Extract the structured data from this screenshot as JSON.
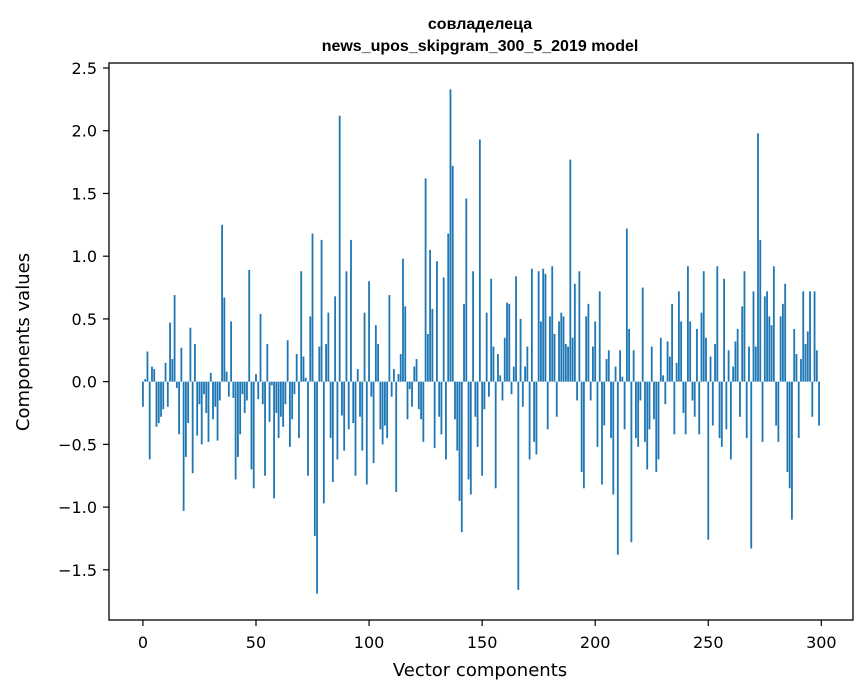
{
  "chart_data": {
    "type": "bar",
    "title": "совладелеца",
    "subtitle": "news_upos_skipgram_300_5_2019 model",
    "xlabel": "Vector components",
    "ylabel": "Components values",
    "xlim": [
      -15,
      314
    ],
    "ylim": [
      -1.9,
      2.54
    ],
    "x_ticks": [
      0,
      50,
      100,
      150,
      200,
      250,
      300
    ],
    "x_tick_labels": [
      "0",
      "50",
      "100",
      "150",
      "200",
      "250",
      "300"
    ],
    "y_ticks": [
      -1.5,
      -1.0,
      -0.5,
      0.0,
      0.5,
      1.0,
      1.5,
      2.0,
      2.5
    ],
    "y_tick_labels": [
      "−1.5",
      "−1.0",
      "−0.5",
      "0.0",
      "0.5",
      "1.0",
      "1.5",
      "2.0",
      "2.5"
    ],
    "grid": false,
    "bar_color": "#1f77b4",
    "values": [
      -0.2,
      0.02,
      0.24,
      -0.62,
      0.12,
      0.1,
      -0.36,
      -0.33,
      -0.28,
      -0.22,
      0.15,
      -0.2,
      0.47,
      0.18,
      0.69,
      -0.05,
      -0.42,
      0.27,
      -1.03,
      -0.6,
      -0.33,
      0.43,
      -0.73,
      0.3,
      -0.43,
      -0.18,
      -0.5,
      -0.1,
      -0.25,
      -0.48,
      0.07,
      -0.3,
      -0.2,
      -0.47,
      -0.15,
      1.25,
      0.67,
      0.08,
      -0.12,
      0.48,
      -0.13,
      -0.78,
      -0.6,
      -0.42,
      -0.1,
      -0.25,
      -0.15,
      0.89,
      -0.7,
      -0.85,
      0.06,
      -0.14,
      0.54,
      -0.18,
      -0.75,
      0.3,
      -0.32,
      -0.03,
      -0.93,
      -0.25,
      -0.45,
      -0.28,
      -0.36,
      -0.18,
      0.33,
      -0.52,
      -0.3,
      -0.1,
      0.22,
      -0.45,
      0.88,
      0.2,
      0.03,
      -0.75,
      0.52,
      1.18,
      -1.23,
      -1.69,
      0.28,
      1.13,
      -0.97,
      0.3,
      0.55,
      -0.45,
      -0.8,
      0.68,
      -0.62,
      2.12,
      -0.27,
      -0.55,
      0.88,
      -0.38,
      1.13,
      -0.33,
      -0.75,
      0.1,
      -0.28,
      -0.55,
      0.55,
      -0.82,
      0.8,
      -0.12,
      -0.65,
      0.45,
      0.3,
      -0.38,
      -0.5,
      -0.35,
      -0.45,
      0.69,
      -0.12,
      0.1,
      -0.88,
      0.06,
      0.22,
      0.98,
      0.6,
      -0.3,
      -0.06,
      -0.2,
      0.12,
      0.18,
      -0.22,
      -0.3,
      -0.48,
      1.62,
      0.38,
      1.05,
      0.58,
      -0.53,
      0.96,
      -0.28,
      -0.42,
      0.83,
      -0.62,
      1.18,
      2.33,
      1.72,
      -0.3,
      -0.55,
      -0.95,
      -1.2,
      0.62,
      1.46,
      -0.78,
      -0.9,
      0.88,
      -0.28,
      -0.52,
      1.93,
      -0.75,
      -0.22,
      0.55,
      -0.12,
      0.82,
      0.28,
      -0.85,
      0.22,
      0.05,
      -0.15,
      0.35,
      0.63,
      0.62,
      -0.1,
      0.12,
      0.84,
      -1.66,
      0.5,
      -0.2,
      0.12,
      0.28,
      -0.62,
      0.9,
      -0.48,
      -0.58,
      0.88,
      0.48,
      0.9,
      0.86,
      -0.38,
      0.52,
      0.92,
      0.38,
      -0.28,
      0.48,
      0.55,
      0.52,
      0.3,
      0.28,
      1.77,
      0.35,
      0.78,
      -0.15,
      0.88,
      -0.72,
      -0.85,
      0.52,
      0.62,
      -0.15,
      0.28,
      0.48,
      -0.52,
      0.72,
      -0.82,
      -0.35,
      0.18,
      0.25,
      -0.45,
      -0.9,
      0.12,
      -1.38,
      0.25,
      0.04,
      -0.38,
      1.22,
      0.42,
      -1.28,
      0.25,
      -0.45,
      -0.52,
      -0.15,
      0.75,
      -0.48,
      -0.7,
      -0.38,
      0.28,
      -0.3,
      -0.72,
      -0.62,
      0.35,
      0.05,
      -0.18,
      0.32,
      0.2,
      0.62,
      -0.42,
      0.15,
      0.72,
      0.48,
      -0.25,
      -0.42,
      0.92,
      0.48,
      -0.15,
      -0.28,
      0.42,
      -0.42,
      0.55,
      0.88,
      0.35,
      -1.26,
      0.2,
      -0.35,
      0.3,
      0.92,
      -0.45,
      -0.52,
      0.82,
      -0.38,
      0.25,
      -0.62,
      0.12,
      0.32,
      0.42,
      -0.28,
      0.6,
      0.88,
      -0.45,
      0.28,
      -1.33,
      0.72,
      0.28,
      1.98,
      1.13,
      -0.48,
      0.68,
      0.72,
      0.52,
      0.45,
      0.92,
      -0.35,
      -0.48,
      0.52,
      0.62,
      0.78,
      -0.72,
      -0.85,
      -1.1,
      0.42,
      0.22,
      -0.45,
      0.18,
      0.72,
      0.3,
      0.4,
      0.72,
      -0.28,
      0.72,
      0.25,
      -0.35
    ]
  }
}
